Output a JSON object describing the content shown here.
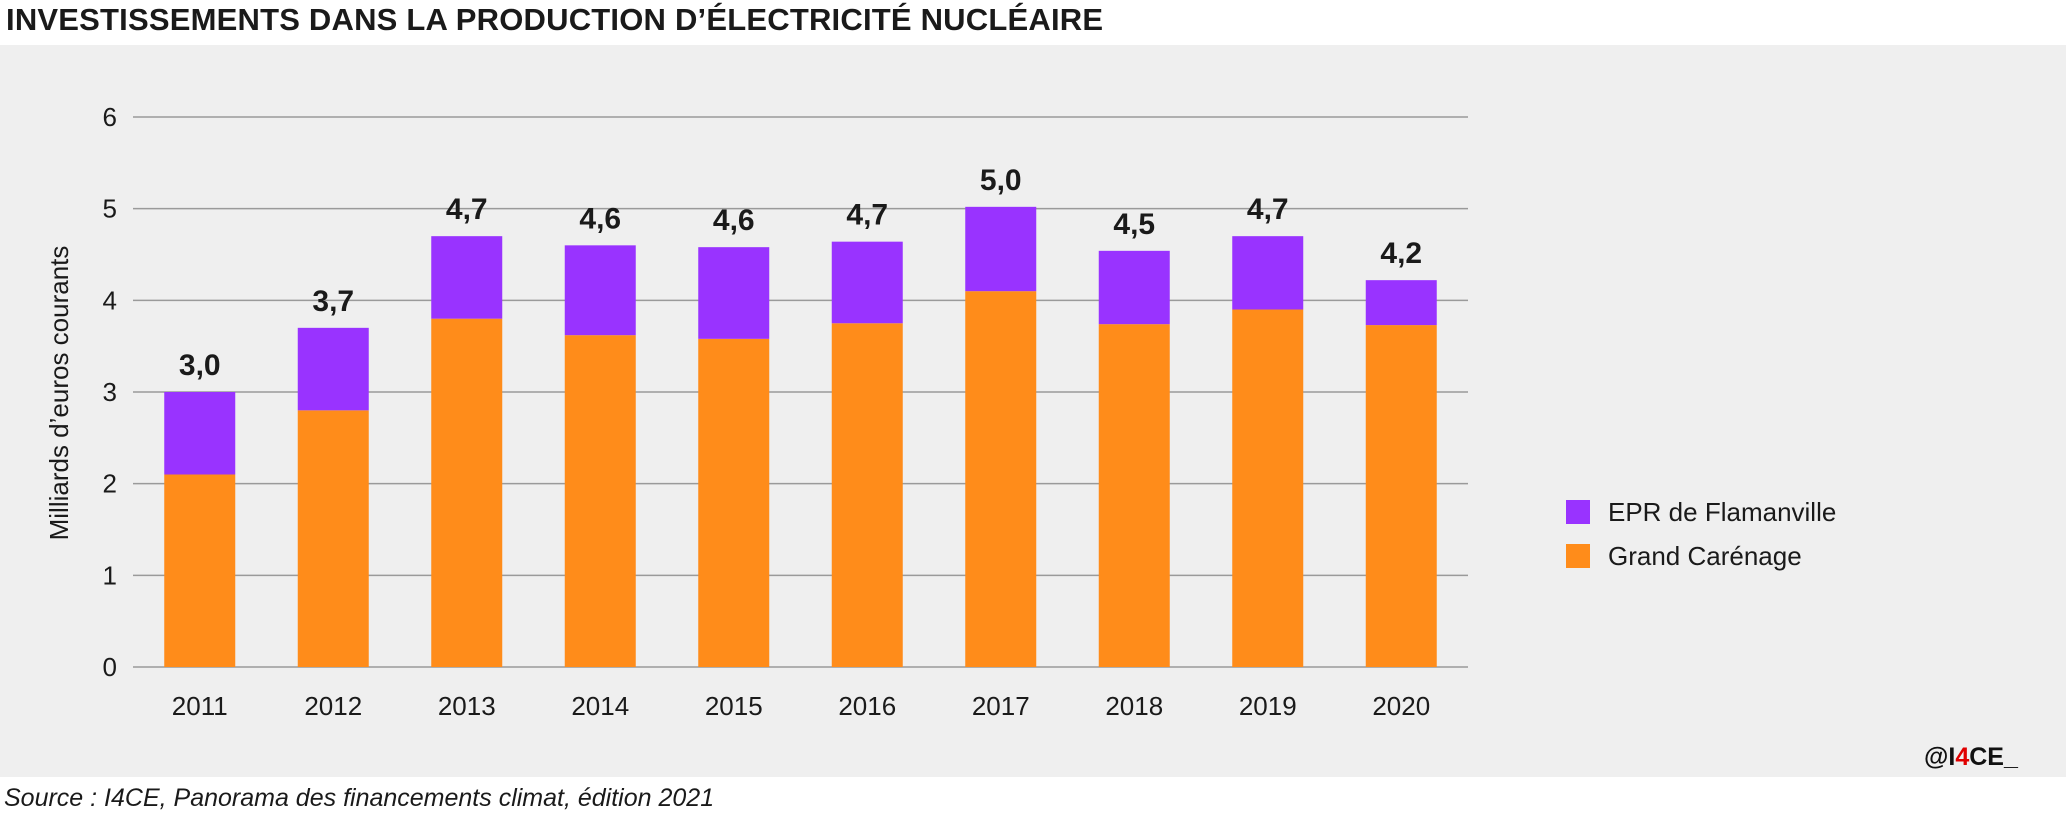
{
  "header": {
    "title": "INVESTISSEMENTS DANS LA PRODUCTION D’ÉLECTRICITÉ NUCLÉAIRE"
  },
  "footer": {
    "source": "Source : I4CE, Panorama des financements climat, édition 2021",
    "credit_prefix": "@I",
    "credit_accent": "4",
    "credit_suffix": "CE_"
  },
  "colors": {
    "epr": "#9933ff",
    "grand_carenage": "#ff8c1a",
    "panel_bg": "#efefef",
    "gridline": "#9a9a9a",
    "credit_accent": "#e00000"
  },
  "chart_data": {
    "type": "bar",
    "stacked": true,
    "title": "INVESTISSEMENTS DANS LA PRODUCTION D’ÉLECTRICITÉ NUCLÉAIRE",
    "xlabel": "",
    "ylabel": "Milliards d’euros courants",
    "ylim": [
      0,
      6
    ],
    "yticks": [
      "0",
      "1",
      "2",
      "3",
      "4",
      "5",
      "6"
    ],
    "grid": true,
    "legend_position": "right",
    "categories": [
      "2011",
      "2012",
      "2013",
      "2014",
      "2015",
      "2016",
      "2017",
      "2018",
      "2019",
      "2020"
    ],
    "series": [
      {
        "name": "Grand Carénage",
        "color": "#ff8c1a",
        "values": [
          2.1,
          2.8,
          3.8,
          3.62,
          3.58,
          3.75,
          4.1,
          3.74,
          3.9,
          3.73
        ]
      },
      {
        "name": "EPR de Flamanville",
        "color": "#9933ff",
        "values": [
          0.9,
          0.9,
          0.9,
          0.98,
          1.0,
          0.89,
          0.92,
          0.8,
          0.8,
          0.49
        ]
      }
    ],
    "totals_labels": [
      "3,0",
      "3,7",
      "4,7",
      "4,6",
      "4,6",
      "4,7",
      "5,0",
      "4,5",
      "4,7",
      "4,2"
    ],
    "legend": [
      "EPR de Flamanville",
      "Grand Carénage"
    ]
  }
}
